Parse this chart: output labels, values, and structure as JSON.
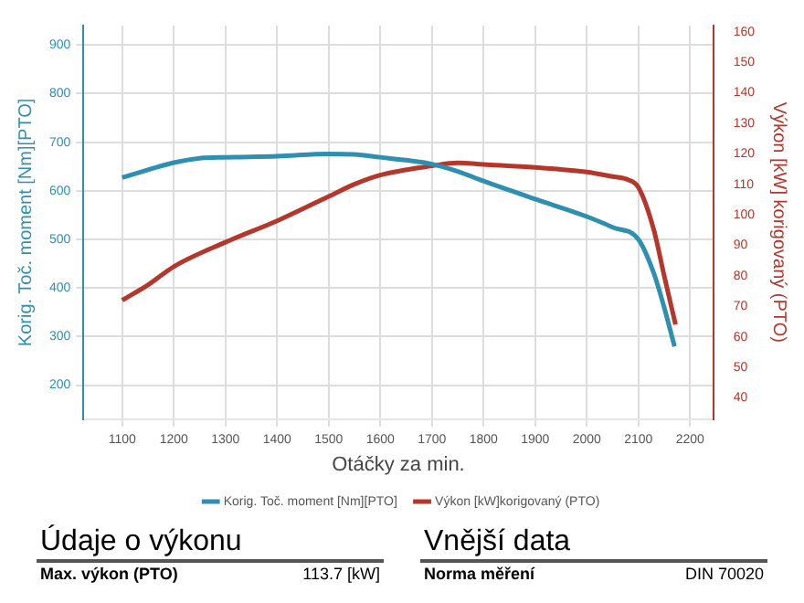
{
  "chart_data": {
    "type": "line",
    "xlabel": "Otáčky za min.",
    "ylabel": "Korig. Toč. moment [Nm][PTO]",
    "y2label": "Výkon [kW] korigovaný (PTO)",
    "series": [
      {
        "name": "Korig. Toč. moment [Nm][PTO]",
        "color": "#2e8fb0",
        "x": [
          1100,
          1150,
          1200,
          1250,
          1300,
          1400,
          1500,
          1550,
          1600,
          1650,
          1700,
          1750,
          1800,
          1900,
          2000,
          2050,
          2100,
          2130,
          2150,
          2170
        ],
        "values": [
          627,
          643,
          658,
          667,
          669,
          671,
          676,
          675,
          669,
          663,
          655,
          640,
          620,
          583,
          547,
          525,
          500,
          430,
          360,
          280
        ]
      },
      {
        "name": "Výkon [kW]korigovaný (PTO)",
        "color": "#b5362a",
        "axis": "y2",
        "x": [
          1100,
          1150,
          1200,
          1300,
          1400,
          1500,
          1550,
          1600,
          1700,
          1750,
          1800,
          1900,
          2000,
          2050,
          2080,
          2100,
          2130,
          2150,
          2172
        ],
        "values": [
          72,
          77,
          83,
          91,
          98,
          106,
          110,
          113,
          116,
          117,
          116.5,
          115.5,
          114,
          112.5,
          111.5,
          109,
          95,
          80,
          64
        ]
      }
    ],
    "xlim": [
      1025,
      2245
    ],
    "xticks": [
      1100,
      1200,
      1300,
      1400,
      1500,
      1600,
      1700,
      1800,
      1900,
      2000,
      2100,
      2200
    ],
    "ylim": [
      130,
      940
    ],
    "yticks": [
      200,
      300,
      400,
      500,
      600,
      700,
      800,
      900
    ],
    "y2lim": [
      33,
      162
    ],
    "y2ticks": [
      40,
      50,
      60,
      70,
      80,
      90,
      100,
      110,
      120,
      130,
      140,
      150,
      160
    ],
    "grid": true,
    "legend": "bottom",
    "marker": "none",
    "line_style": "solid",
    "annotations": [
      "Údaje o výkonu",
      "Max. výkon (PTO)",
      "113.7 [kW]",
      "Vnější data",
      "Norma měření",
      "DIN 70020"
    ]
  }
}
